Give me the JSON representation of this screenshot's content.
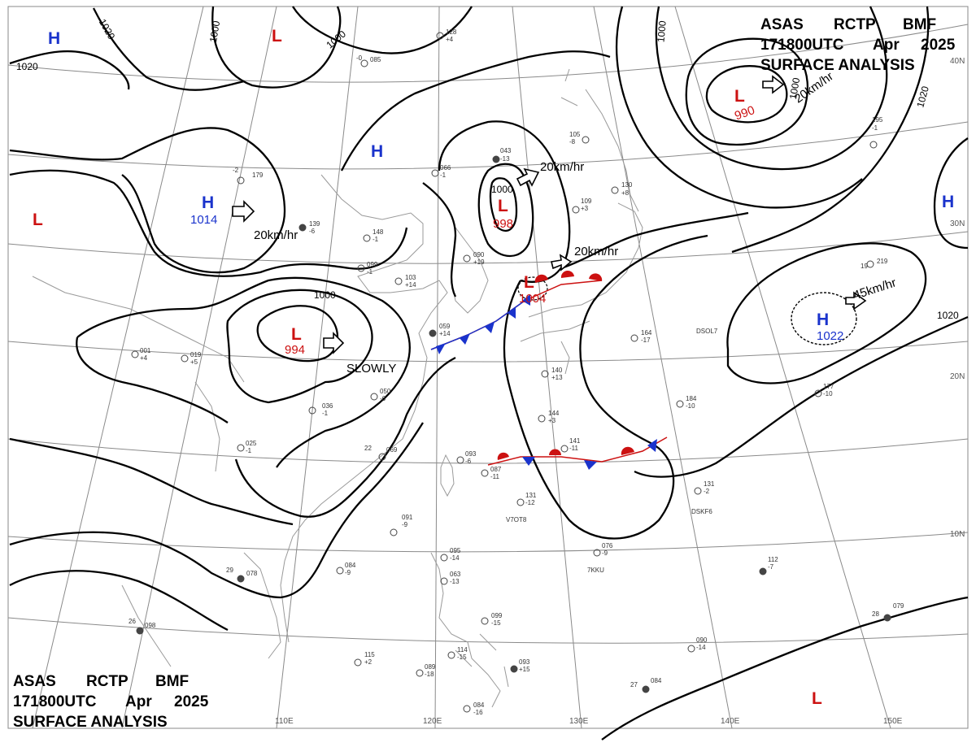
{
  "header": {
    "line1": [
      "ASAS",
      "RCTP",
      "BMF"
    ],
    "line2": [
      "171800UTC",
      "Apr",
      "2025"
    ],
    "line3": "SURFACE ANALYSIS"
  },
  "grid": {
    "lat_labels": [
      "40N",
      "30N",
      "20N",
      "10N"
    ],
    "lon_labels": [
      "110E",
      "120E",
      "130E",
      "140E",
      "150E"
    ]
  },
  "isobar_labels": [
    "1020",
    "1000",
    "1000",
    "1020",
    "1000",
    "1000",
    "1000",
    "1000",
    "1020",
    "1020"
  ],
  "centers": [
    {
      "type": "H",
      "value": "",
      "color": "#1a33cc"
    },
    {
      "type": "L",
      "value": "",
      "color": "#cc1111"
    },
    {
      "type": "L",
      "value": "990",
      "color": "#cc1111"
    },
    {
      "type": "H",
      "value": "",
      "color": "#1a33cc"
    },
    {
      "type": "L",
      "value": "",
      "color": "#cc1111"
    },
    {
      "type": "H",
      "value": "1014",
      "color": "#1a33cc"
    },
    {
      "type": "H",
      "value": "",
      "color": "#1a33cc"
    },
    {
      "type": "L",
      "value": "998",
      "color": "#cc1111"
    },
    {
      "type": "L",
      "value": "1004",
      "color": "#cc1111"
    },
    {
      "type": "L",
      "value": "994",
      "color": "#cc1111"
    },
    {
      "type": "H",
      "value": "1022",
      "color": "#1a33cc"
    },
    {
      "type": "L",
      "value": "",
      "color": "#cc1111"
    }
  ],
  "motion": [
    "20km/hr",
    "20km/hr",
    "20km/hr",
    "20km/hr",
    "45km/hr",
    "SLOWLY"
  ],
  "stations": [
    {
      "id": "st1",
      "lines": [
        "128",
        "+4"
      ]
    },
    {
      "id": "st2",
      "lines": [
        "085",
        "-0"
      ]
    },
    {
      "id": "st3",
      "lines": [
        "043",
        "-13"
      ]
    },
    {
      "id": "st4",
      "lines": [
        "066",
        "-1"
      ]
    },
    {
      "id": "st5",
      "lines": [
        "179",
        "-2"
      ]
    },
    {
      "id": "st6",
      "lines": [
        "139",
        "-6"
      ]
    },
    {
      "id": "st7",
      "lines": [
        "148",
        "-1"
      ]
    },
    {
      "id": "st8",
      "lines": [
        "099",
        "-1"
      ]
    },
    {
      "id": "st9",
      "lines": [
        "103",
        "+14"
      ]
    },
    {
      "id": "st10",
      "lines": [
        "090",
        "+19"
      ]
    },
    {
      "id": "st11",
      "lines": [
        "109",
        "+3"
      ]
    },
    {
      "id": "st12",
      "lines": [
        "130",
        "+8"
      ]
    },
    {
      "id": "st13",
      "lines": [
        "105",
        "-8"
      ]
    },
    {
      "id": "st14",
      "lines": [
        "195",
        "-1"
      ]
    },
    {
      "id": "st15",
      "lines": [
        "219",
        "19"
      ]
    },
    {
      "id": "st16",
      "lines": [
        "059",
        "+14"
      ]
    },
    {
      "id": "st17",
      "lines": [
        "019",
        "+5"
      ]
    },
    {
      "id": "st18",
      "lines": [
        "001",
        "+4"
      ]
    },
    {
      "id": "st19",
      "lines": [
        "036",
        "-1"
      ]
    },
    {
      "id": "st20",
      "lines": [
        "050",
        "-6"
      ]
    },
    {
      "id": "st21",
      "lines": [
        "025",
        "-1"
      ]
    },
    {
      "id": "st22",
      "lines": [
        "069",
        "22"
      ]
    },
    {
      "id": "st23",
      "lines": [
        "144",
        "+3"
      ]
    },
    {
      "id": "st24",
      "lines": [
        "140",
        "+13"
      ]
    },
    {
      "id": "st25",
      "lines": [
        "164",
        "-17"
      ]
    },
    {
      "id": "st26",
      "lines": [
        "184",
        "-10"
      ]
    },
    {
      "id": "st27",
      "lines": [
        "177",
        "-10"
      ]
    },
    {
      "id": "st28",
      "lines": [
        "141",
        "-11"
      ]
    },
    {
      "id": "st29",
      "lines": [
        "093",
        "-6"
      ]
    },
    {
      "id": "st30",
      "lines": [
        "087",
        "-11"
      ]
    },
    {
      "id": "st31",
      "lines": [
        "131",
        "-12"
      ]
    },
    {
      "id": "st32",
      "lines": [
        "131",
        "-2"
      ]
    },
    {
      "id": "st33",
      "lines": [
        "091",
        "-9"
      ]
    },
    {
      "id": "st34",
      "lines": [
        "084",
        "-9"
      ]
    },
    {
      "id": "st35",
      "lines": [
        "078",
        "29"
      ]
    },
    {
      "id": "st36",
      "lines": [
        "098",
        "26"
      ]
    },
    {
      "id": "st37",
      "lines": [
        "115",
        "+2"
      ]
    },
    {
      "id": "st38",
      "lines": [
        "089",
        "-18"
      ]
    },
    {
      "id": "st39",
      "lines": [
        "114",
        "-15"
      ]
    },
    {
      "id": "st40",
      "lines": [
        "093",
        "+15"
      ]
    },
    {
      "id": "st41",
      "lines": [
        "084",
        "-16"
      ]
    },
    {
      "id": "st42",
      "lines": [
        "099",
        "-15"
      ]
    },
    {
      "id": "st43",
      "lines": [
        "095",
        "-14"
      ]
    },
    {
      "id": "st44",
      "lines": [
        "063",
        "-13"
      ]
    },
    {
      "id": "st45",
      "lines": [
        "076",
        "-9"
      ]
    },
    {
      "id": "st46",
      "lines": [
        "112",
        "-7"
      ]
    },
    {
      "id": "st47",
      "lines": [
        "090",
        "-14"
      ]
    },
    {
      "id": "st48",
      "lines": [
        "084",
        "27"
      ]
    },
    {
      "id": "st49",
      "lines": [
        "079",
        "28"
      ]
    }
  ],
  "station_ids": [
    "DSOL7",
    "DSKF6",
    "V7OT8",
    "7KKU"
  ]
}
